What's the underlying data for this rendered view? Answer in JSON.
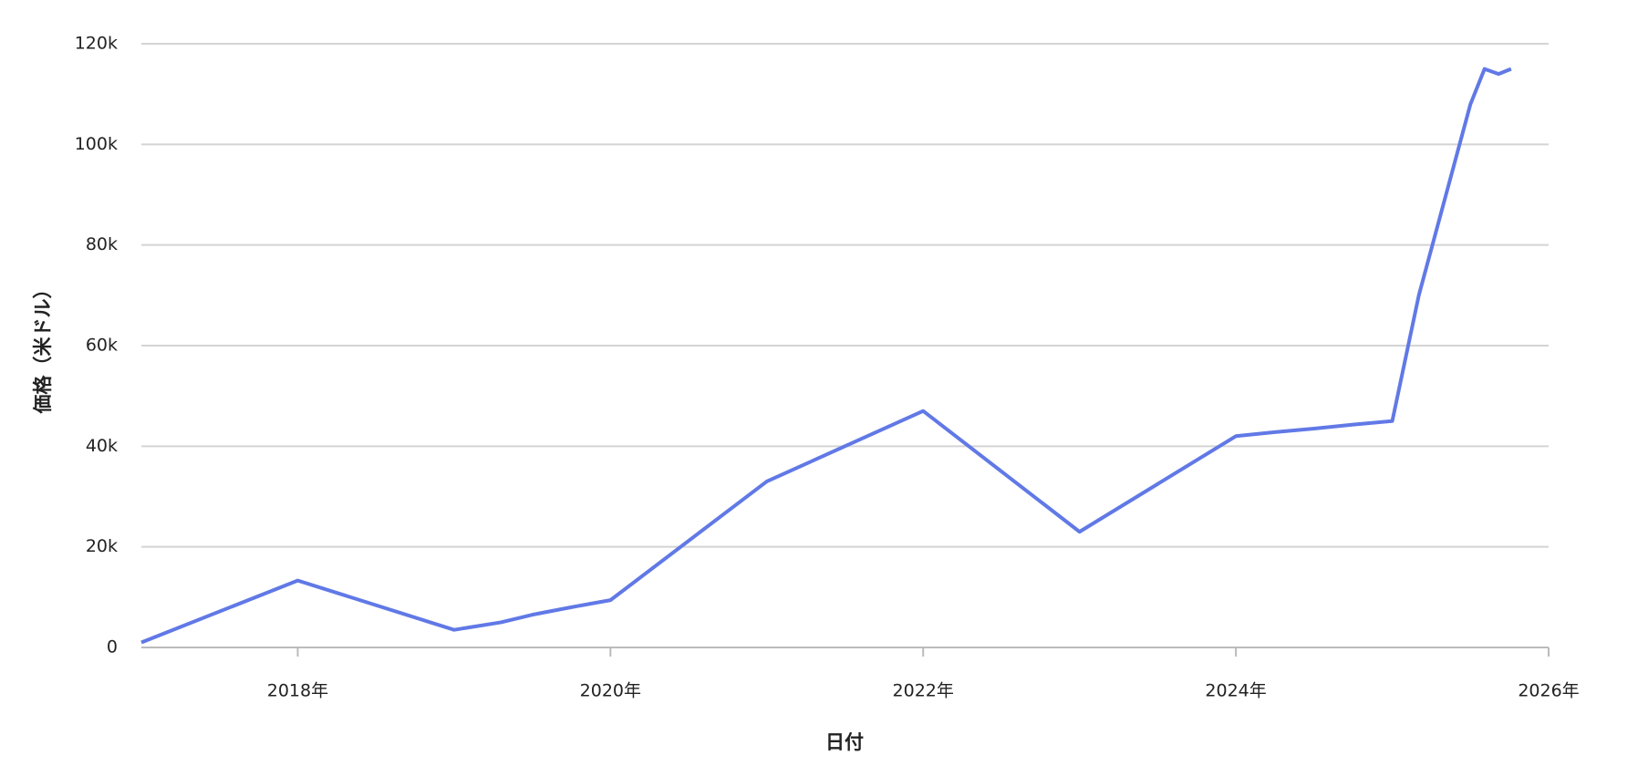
{
  "chart_data": {
    "type": "line",
    "x_label": "日付",
    "y_label": "価格（米ドル）",
    "x": [
      2017.0,
      2018.0,
      2019.0,
      2019.3,
      2019.5,
      2019.75,
      2020.0,
      2021.0,
      2022.0,
      2023.0,
      2024.0,
      2024.25,
      2024.5,
      2024.75,
      2025.0,
      2025.17,
      2025.5,
      2025.59,
      2025.68,
      2025.76
    ],
    "series": [
      {
        "name": "価格",
        "color": "#6179e6",
        "values": [
          1000,
          13300,
          3500,
          5000,
          6500,
          8000,
          9400,
          33000,
          47000,
          23000,
          42000,
          42800,
          43500,
          44300,
          45000,
          70000,
          108000,
          115000,
          114000,
          115000
        ]
      }
    ],
    "xlim": [
      2017,
      2026
    ],
    "xticks": [
      {
        "value": 2018,
        "label": "2018年"
      },
      {
        "value": 2020,
        "label": "2020年"
      },
      {
        "value": 2022,
        "label": "2022年"
      },
      {
        "value": 2024,
        "label": "2024年"
      },
      {
        "value": 2026,
        "label": "2026年"
      }
    ],
    "ylim": [
      0,
      120000
    ],
    "yticks": [
      0,
      {
        "value": 20000,
        "label": "20k"
      },
      {
        "value": 40000,
        "label": "40k"
      },
      {
        "value": 60000,
        "label": "60k"
      },
      {
        "value": 80000,
        "label": "80k"
      },
      {
        "value": 100000,
        "label": "100k"
      },
      {
        "value": 120000,
        "label": "120k"
      }
    ],
    "grid": true
  }
}
